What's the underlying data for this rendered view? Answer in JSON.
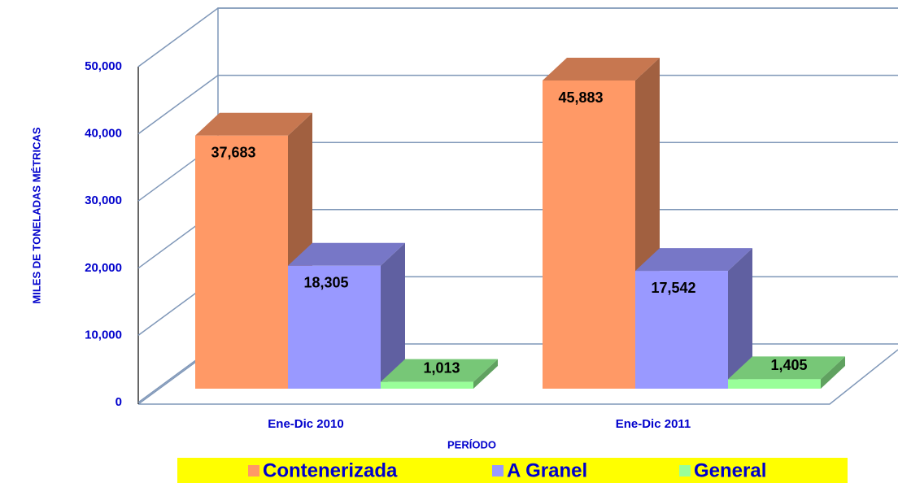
{
  "chart_data": {
    "type": "bar3d",
    "y_label": "MILES DE TONELADAS MÉTRICAS",
    "x_label": "PERÍODO",
    "categories": [
      "Ene-Dic 2010",
      "Ene-Dic 2011"
    ],
    "series": [
      {
        "name": "Contenerizada",
        "color": "#ff9966",
        "values": [
          37683,
          45883
        ],
        "value_labels": [
          "37,683",
          "45,883"
        ]
      },
      {
        "name": "A Granel",
        "color": "#9999ff",
        "values": [
          18305,
          17542
        ],
        "value_labels": [
          "18,305",
          "17,542"
        ]
      },
      {
        "name": "General",
        "color": "#99ff99",
        "values": [
          1013,
          1405
        ],
        "value_labels": [
          "1,013",
          "1,405"
        ]
      }
    ],
    "ylim": [
      0,
      50000
    ],
    "yticks": [
      0,
      {
        "value": 10000,
        "label": "10,000"
      },
      {
        "value": 20000,
        "label": "20,000"
      },
      {
        "value": 30000,
        "label": "30,000"
      },
      {
        "value": 40000,
        "label": "40,000"
      },
      {
        "value": 50000,
        "label": "50,000"
      }
    ],
    "grid": true
  }
}
